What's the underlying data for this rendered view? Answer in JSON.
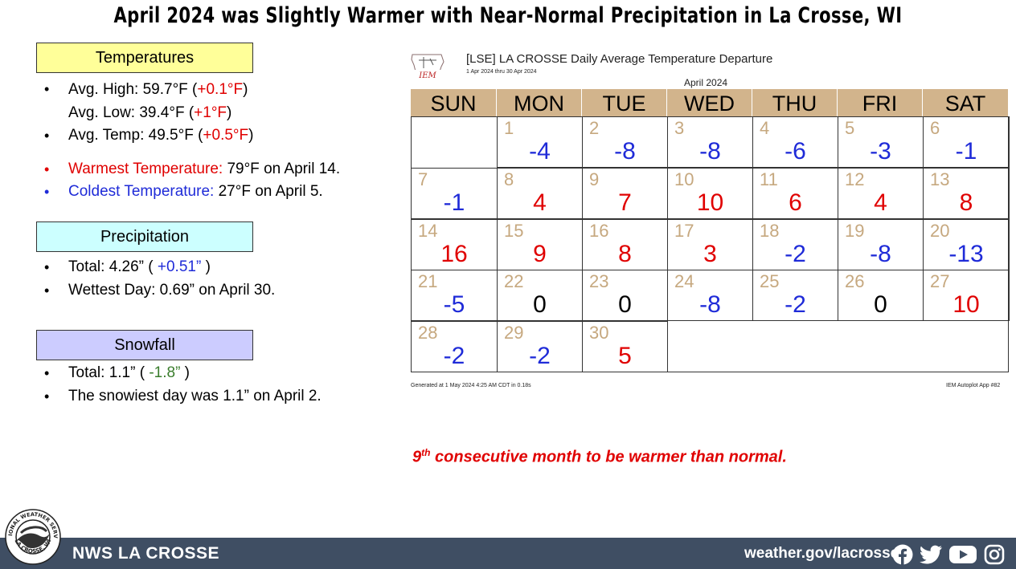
{
  "title": "April 2024 was Slightly Warmer with Near-Normal Precipitation in La Crosse, WI",
  "temps": {
    "header": "Temperatures",
    "avg_high_label": "Avg. High:  59.7°F (",
    "avg_high_dep": "+0.1°F",
    "avg_low_label": "Avg. Low:  39.4°F (",
    "avg_low_dep": "+1°F",
    "avg_temp_label": "Avg. Temp:  49.5°F (",
    "avg_temp_dep": "+0.5°F",
    "close": ")",
    "warmest_label": "Warmest Temperature:",
    "warmest_value": "  79°F on April 14.",
    "coldest_label": "Coldest Temperature:",
    "coldest_value": "  27°F on April 5."
  },
  "precip": {
    "header": "Precipitation",
    "total_label": "Total:  4.26” ( ",
    "total_dep": "+0.51”",
    "total_close": " )",
    "wettest": "Wettest Day:  0.69” on April 30."
  },
  "snow": {
    "header": "Snowfall",
    "total_label": "Total:  1.1” ( ",
    "total_dep": "-1.8”",
    "total_close": " )",
    "snowiest": "The snowiest day was 1.1” on April 2."
  },
  "calendar": {
    "logo_text": "IEM",
    "title": "[LSE] LA CROSSE Daily Average Temperature Departure",
    "subtitle": "1 Apr 2024 thru 30 Apr 2024",
    "month": "April 2024",
    "days_of_week": [
      "SUN",
      "MON",
      "TUE",
      "WED",
      "THU",
      "FRI",
      "SAT"
    ],
    "start_weekday": 1,
    "departures": [
      -4,
      -8,
      -8,
      -6,
      -3,
      -1,
      -1,
      4,
      7,
      10,
      6,
      4,
      8,
      16,
      9,
      8,
      3,
      -2,
      -8,
      -13,
      -5,
      0,
      0,
      -8,
      -2,
      0,
      10,
      -2,
      -2,
      5
    ],
    "colors": {
      "warm": "#e00000",
      "cold": "#1f2bd8",
      "zero": "#000000",
      "day": "#c6a87f",
      "header_bg": "#d2b48c"
    },
    "generated": "Generated at 1 May 2024 4:25 AM CDT in 0.18s",
    "app": "IEM Autoplot App #82"
  },
  "note": {
    "ordinal": "9",
    "suffix": "th",
    "text": " consecutive month to be warmer than normal."
  },
  "footer": {
    "office": "NWS LA CROSSE",
    "site": "weather.gov/lacrosse",
    "seal_top": "NATIONAL WEATHER SERVICE",
    "seal_bottom": "LA CROSSE, WI",
    "icons": [
      "facebook-icon",
      "twitter-icon",
      "youtube-icon",
      "instagram-icon"
    ]
  }
}
